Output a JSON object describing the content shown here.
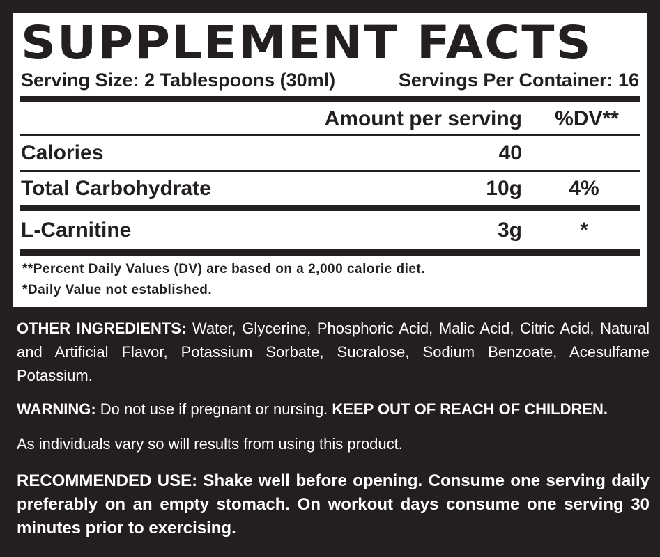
{
  "label": {
    "title": "SUPPLEMENT FACTS",
    "serving_size": "Serving Size: 2 Tablespoons (30ml)",
    "servings_per_container": "Servings Per Container: 16",
    "header": {
      "amount": "Amount per serving",
      "dv": "%DV**"
    },
    "rows": [
      {
        "name": "Calories",
        "amount": "40",
        "dv": ""
      },
      {
        "name": "Total Carbohydrate",
        "amount": "10g",
        "dv": "4%"
      },
      {
        "name": "L-Carnitine",
        "amount": "3g",
        "dv": "*"
      }
    ],
    "footnote_1": "**Percent Daily Values (DV) are based on a 2,000 calorie diet.",
    "footnote_2": "*Daily Value not established."
  },
  "other_ingredients": {
    "label": "OTHER INGREDIENTS:",
    "text": " Water, Glycerine, Phosphoric Acid, Malic Acid, Citric Acid, Natural and Artificial Flavor, Potassium Sorbate, Sucralose, Sodium Benzoate, Acesulfame Potassium."
  },
  "warning": {
    "label": "WARNING:",
    "text": " Do not use if pregnant or nursing. ",
    "emphasis": "KEEP OUT OF REACH OF CHILDREN."
  },
  "disclaimer": "As individuals vary so will results from using this product.",
  "recommended_use": {
    "label": "RECOMMENDED USE:",
    "text": " Shake well before opening. Consume one serving daily preferably on an empty stomach. On workout days consume one serving 30 minutes prior to exercising."
  }
}
